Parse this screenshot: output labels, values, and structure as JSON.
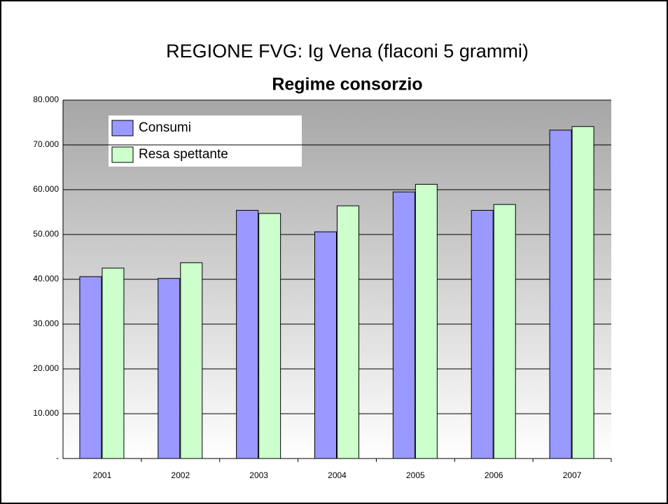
{
  "chart_data": {
    "type": "bar",
    "title": "REGIONE FVG: Ig Vena (flaconi 5 grammi)",
    "subtitle": "Regime consorzio",
    "categories": [
      "2001",
      "2002",
      "2003",
      "2004",
      "2005",
      "2006",
      "2007"
    ],
    "series": [
      {
        "name": "Consumi",
        "color": "#9999ff",
        "values": [
          40600,
          40200,
          55400,
          50600,
          59500,
          55400,
          73300
        ]
      },
      {
        "name": "Resa spettante",
        "color": "#ccffcc",
        "values": [
          42500,
          43700,
          54700,
          56400,
          61200,
          56700,
          74100
        ]
      }
    ],
    "ylim": [
      0,
      80000
    ],
    "yticks": [
      {
        "value": 0,
        "label": "-"
      },
      {
        "value": 10000,
        "label": "10.000"
      },
      {
        "value": 20000,
        "label": "20.000"
      },
      {
        "value": 30000,
        "label": "30.000"
      },
      {
        "value": 40000,
        "label": "40.000"
      },
      {
        "value": 50000,
        "label": "50.000"
      },
      {
        "value": 60000,
        "label": "60.000"
      },
      {
        "value": 70000,
        "label": "70.000"
      },
      {
        "value": 80000,
        "label": "80.000"
      }
    ],
    "grid": true,
    "legend": "top-left"
  }
}
